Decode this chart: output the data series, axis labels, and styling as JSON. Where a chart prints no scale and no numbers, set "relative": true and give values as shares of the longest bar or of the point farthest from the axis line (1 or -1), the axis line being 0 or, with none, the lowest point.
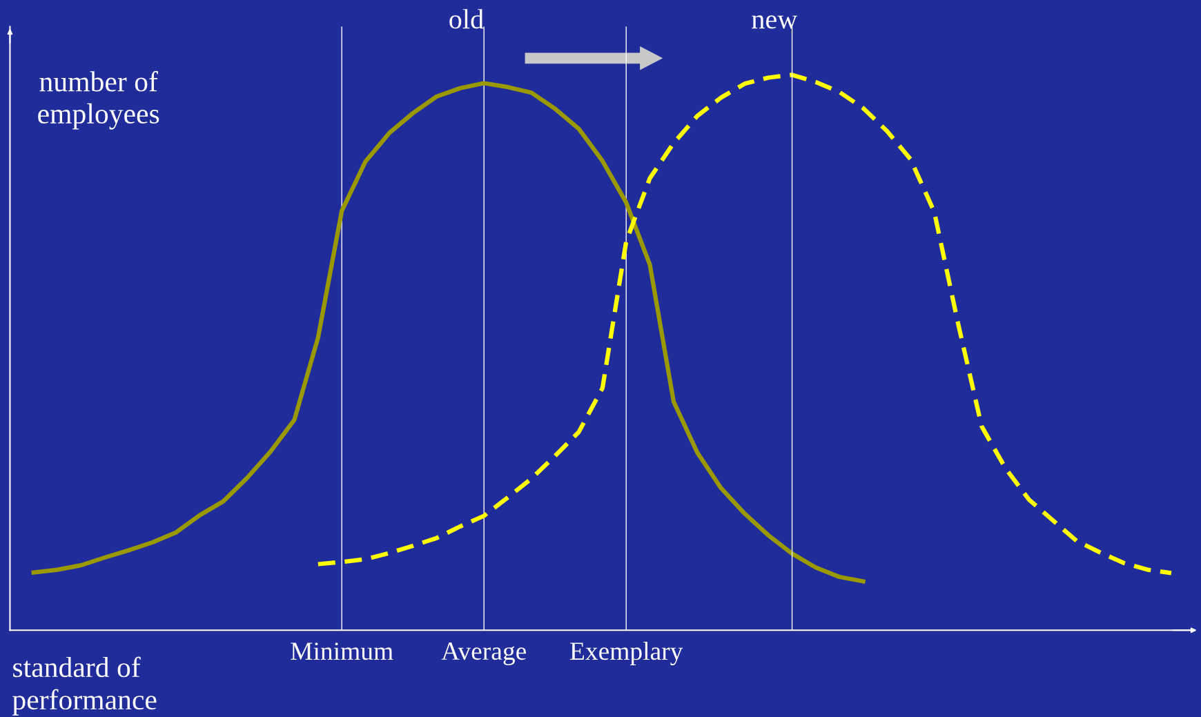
{
  "chart_data": {
    "type": "line",
    "relative": true,
    "xlabel": "standard of performance",
    "ylabel": "number of employees",
    "categories": [
      null,
      null,
      null,
      null,
      null,
      null,
      null,
      null,
      null,
      null,
      null,
      null,
      null,
      null,
      "Minimum",
      null,
      null,
      null,
      null,
      null,
      "Average",
      null,
      null,
      null,
      null,
      null,
      "Exemplary",
      null,
      null,
      null,
      null,
      null,
      null,
      null,
      null,
      null,
      null,
      null,
      null,
      null,
      null,
      null,
      null,
      null,
      null,
      null,
      null,
      null,
      null,
      null,
      null
    ],
    "series": [
      {
        "name": "old",
        "color": "#9a9a00",
        "line_style": "solid",
        "values": [
          null,
          0.104,
          0.109,
          0.117,
          0.131,
          0.144,
          0.158,
          0.176,
          0.207,
          0.232,
          0.274,
          0.322,
          0.379,
          0.527,
          0.755,
          0.844,
          0.895,
          0.931,
          0.961,
          0.976,
          0.985,
          0.978,
          0.968,
          0.939,
          0.903,
          0.845,
          0.77,
          0.658,
          0.412,
          0.32,
          0.256,
          0.21,
          0.171,
          0.138,
          0.113,
          0.096,
          0.088,
          null,
          null,
          null,
          null,
          null,
          null,
          null,
          null,
          null,
          null,
          null,
          null,
          null,
          null
        ]
      },
      {
        "name": "new",
        "color": "#ffff00",
        "line_style": "dashed",
        "values": [
          null,
          null,
          null,
          null,
          null,
          null,
          null,
          null,
          null,
          null,
          null,
          null,
          null,
          0.119,
          0.123,
          0.128,
          0.139,
          0.152,
          0.166,
          0.187,
          0.206,
          0.239,
          0.273,
          0.314,
          0.357,
          0.436,
          0.7,
          0.814,
          0.877,
          0.926,
          0.959,
          0.984,
          0.995,
          1,
          0.987,
          0.969,
          0.94,
          0.899,
          0.848,
          0.753,
          0.553,
          0.367,
          0.292,
          0.235,
          0.198,
          0.161,
          0.14,
          0.121,
          0.109,
          0.103,
          null
        ]
      }
    ],
    "grid": "x"
  }
}
